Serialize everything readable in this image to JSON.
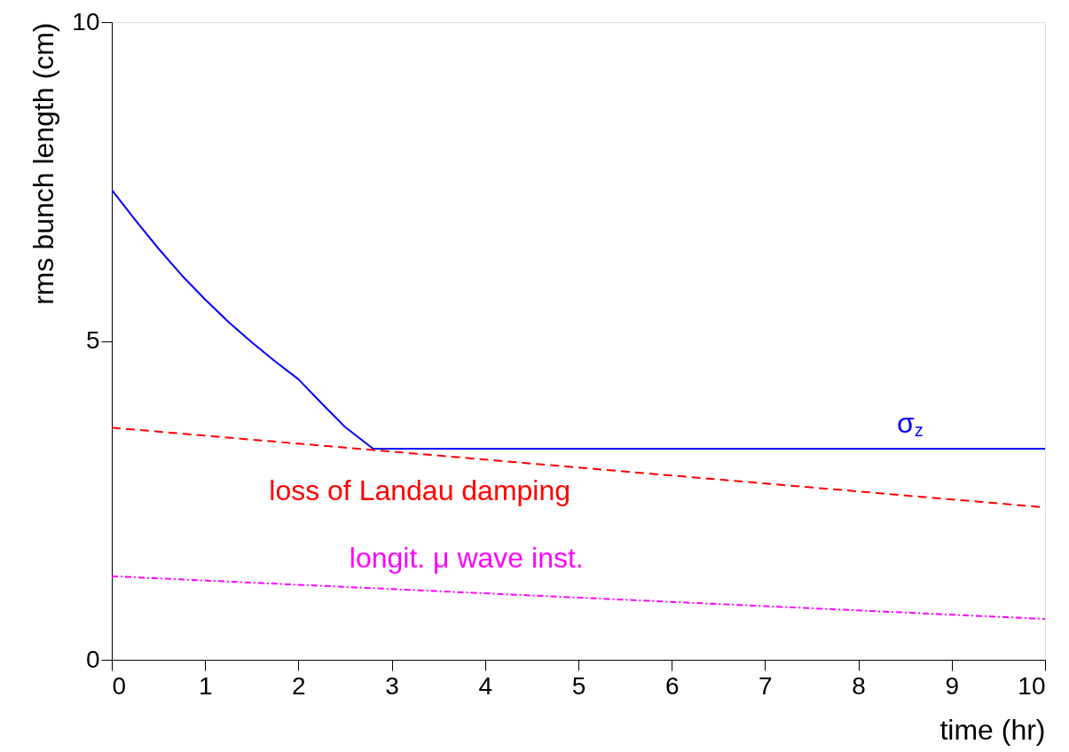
{
  "chart_data": {
    "type": "line",
    "xlabel": "time (hr)",
    "ylabel": "rms bunch length (cm)",
    "xlim": [
      0,
      10
    ],
    "ylim": [
      0,
      10
    ],
    "xticks": [
      0,
      1,
      2,
      3,
      4,
      5,
      6,
      7,
      8,
      9,
      10
    ],
    "yticks": [
      0,
      5,
      10
    ],
    "grid": false,
    "marker": "none",
    "series": [
      {
        "name": "σ$_{z}$",
        "color": "#0000ff",
        "line_style": "solid",
        "x": [
          0,
          0.25,
          0.5,
          0.75,
          1,
          1.25,
          1.5,
          1.75,
          2,
          2.25,
          2.5,
          2.8,
          4,
          6,
          8,
          10
        ],
        "values": [
          7.37,
          6.9,
          6.45,
          6.03,
          5.65,
          5.3,
          4.98,
          4.68,
          4.4,
          4.02,
          3.65,
          3.31,
          3.31,
          3.31,
          3.31,
          3.31
        ]
      },
      {
        "name": "loss of Landau damping",
        "color": "#ff0000",
        "line_style": "dashed",
        "x": [
          0,
          10
        ],
        "values": [
          3.64,
          2.39
        ]
      },
      {
        "name": "longit. μ wave inst.",
        "color": "#ff00ff",
        "line_style": "dotted",
        "x": [
          0,
          10
        ],
        "values": [
          1.31,
          0.64
        ]
      }
    ]
  }
}
